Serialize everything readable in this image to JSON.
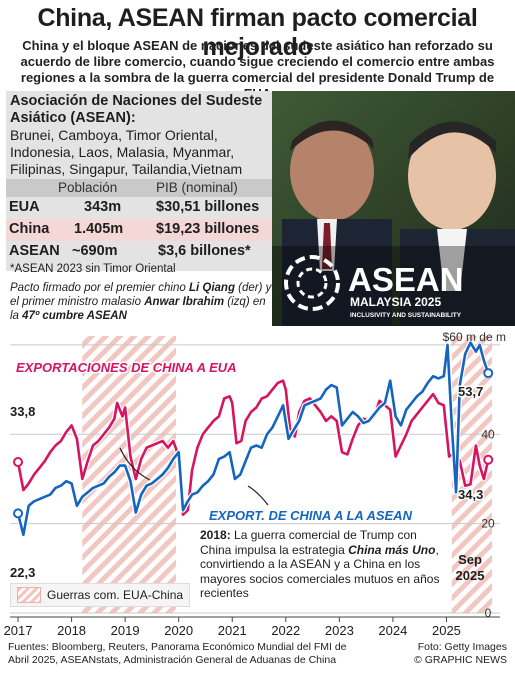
{
  "header": {
    "title": "China, ASEAN firman pacto comercial mejorado",
    "subtitle": "China y el bloque ASEAN de naciones del sudeste asiático han reforzado su acuerdo de libre comercio, cuando sigue creciendo el comercio entre ambas regiones a la sombra de la guerra comercial del presidente Donald Trump de EUA"
  },
  "infobox": {
    "heading": "Asociación de Naciones del Sudeste Asiático (ASEAN):",
    "members": "Brunei, Camboya, Timor Oriental, Indonesia, Laos, Malasia, Myanmar, Filipinas, Singapur, Tailandia,Vietnam",
    "col_population": "Población",
    "col_gdp": "PIB (nominal)",
    "rows": [
      {
        "name": "EUA",
        "population": "343m",
        "gdp": "$30,51 billones"
      },
      {
        "name": "China",
        "population": "1.405m",
        "gdp": "$19,23 billones"
      },
      {
        "name": "ASEAN",
        "population": "~690m",
        "gdp": "$3,6 billones*"
      }
    ],
    "note": "*ASEAN 2023 sin Timor Oriental",
    "caption_pre": "Pacto firmado por el premier chino ",
    "caption_name1": "Li Qiang",
    "caption_mid": " (der) y el primer ministro malasio ",
    "caption_name2": "Anwar Ibrahim",
    "caption_mid2": " (izq) en la ",
    "caption_event": "47º cumbre ASEAN"
  },
  "photo": {
    "logo_text": "ASEAN",
    "logo_sub": "MALAYSIA 2025",
    "logo_tag": "INCLUSIVITY AND SUSTAINABILITY"
  },
  "colors": {
    "china_to_us": "#d6145f",
    "china_to_asean": "#1565c0",
    "hatch": "#f2c6c1",
    "table_alt": "#f4d7d7"
  },
  "chart_data": {
    "type": "line",
    "y_unit_label": "$60 m de m",
    "ylim": [
      0,
      62
    ],
    "y_ticks": [
      "20",
      "40",
      "0"
    ],
    "x_ticks": [
      "2017",
      "2018",
      "2019",
      "2020",
      "2021",
      "2022",
      "2023",
      "2024",
      "2025"
    ],
    "x_range": [
      2016.85,
      2026.0
    ],
    "trade_war_periods": [
      [
        2018.2,
        2019.95
      ],
      [
        2025.1,
        2025.85
      ]
    ],
    "legend_label": "Guerras com. EUA-China",
    "series": [
      {
        "name": "EXPORTACIONES DE CHINA A EUA",
        "values": [
          [
            2017.0,
            33.8
          ],
          [
            2017.1,
            27.5
          ],
          [
            2017.2,
            29
          ],
          [
            2017.3,
            31
          ],
          [
            2017.4,
            32.5
          ],
          [
            2017.5,
            34
          ],
          [
            2017.6,
            36
          ],
          [
            2017.7,
            37.5
          ],
          [
            2017.8,
            38.5
          ],
          [
            2017.9,
            40.5
          ],
          [
            2018.0,
            42
          ],
          [
            2018.1,
            39
          ],
          [
            2018.2,
            30
          ],
          [
            2018.3,
            34
          ],
          [
            2018.4,
            37.5
          ],
          [
            2018.5,
            38.5
          ],
          [
            2018.6,
            40
          ],
          [
            2018.7,
            41.5
          ],
          [
            2018.8,
            43.5
          ],
          [
            2018.85,
            47
          ],
          [
            2018.95,
            44
          ],
          [
            2019.0,
            46
          ],
          [
            2019.1,
            35
          ],
          [
            2019.2,
            30
          ],
          [
            2019.3,
            34.5
          ],
          [
            2019.4,
            37
          ],
          [
            2019.5,
            37.5
          ],
          [
            2019.6,
            38
          ],
          [
            2019.7,
            38.5
          ],
          [
            2019.8,
            37
          ],
          [
            2019.9,
            38.5
          ],
          [
            2020.0,
            35
          ],
          [
            2020.08,
            22
          ],
          [
            2020.17,
            23
          ],
          [
            2020.25,
            32
          ],
          [
            2020.35,
            37
          ],
          [
            2020.45,
            40
          ],
          [
            2020.55,
            41.5
          ],
          [
            2020.65,
            43
          ],
          [
            2020.75,
            44
          ],
          [
            2020.85,
            48
          ],
          [
            2020.95,
            48.5
          ],
          [
            2021.0,
            47
          ],
          [
            2021.08,
            38
          ],
          [
            2021.17,
            38.5
          ],
          [
            2021.25,
            43
          ],
          [
            2021.35,
            45
          ],
          [
            2021.45,
            46
          ],
          [
            2021.55,
            48
          ],
          [
            2021.65,
            48.5
          ],
          [
            2021.75,
            50
          ],
          [
            2021.85,
            51.5
          ],
          [
            2021.95,
            52
          ],
          [
            2022.0,
            50
          ],
          [
            2022.08,
            41
          ],
          [
            2022.17,
            39.5
          ],
          [
            2022.25,
            45
          ],
          [
            2022.35,
            47.5
          ],
          [
            2022.45,
            48
          ],
          [
            2022.55,
            46.5
          ],
          [
            2022.65,
            45
          ],
          [
            2022.75,
            43
          ],
          [
            2022.85,
            44
          ],
          [
            2022.95,
            43
          ],
          [
            2023.05,
            36
          ],
          [
            2023.15,
            35.5
          ],
          [
            2023.25,
            39
          ],
          [
            2023.35,
            42
          ],
          [
            2023.45,
            43.5
          ],
          [
            2023.55,
            43
          ],
          [
            2023.65,
            44
          ],
          [
            2023.75,
            47.5
          ],
          [
            2023.85,
            46.5
          ],
          [
            2023.95,
            45.5
          ],
          [
            2024.05,
            35
          ],
          [
            2024.15,
            37.5
          ],
          [
            2024.25,
            40
          ],
          [
            2024.35,
            43
          ],
          [
            2024.45,
            44.5
          ],
          [
            2024.55,
            46
          ],
          [
            2024.65,
            47.5
          ],
          [
            2024.75,
            49
          ],
          [
            2024.85,
            47
          ],
          [
            2024.95,
            46.5
          ],
          [
            2025.05,
            35
          ],
          [
            2025.15,
            36
          ],
          [
            2025.25,
            34
          ],
          [
            2025.35,
            28.5
          ],
          [
            2025.45,
            28.8
          ],
          [
            2025.55,
            37.5
          ],
          [
            2025.62,
            33
          ],
          [
            2025.7,
            30
          ],
          [
            2025.78,
            34.3
          ]
        ],
        "first_label": "33,8",
        "last_label": "34,3"
      },
      {
        "name": "EXPORT. DE CHINA A LA ASEAN",
        "values": [
          [
            2017.0,
            22.3
          ],
          [
            2017.1,
            17.5
          ],
          [
            2017.2,
            24
          ],
          [
            2017.3,
            25
          ],
          [
            2017.4,
            25.5
          ],
          [
            2017.5,
            26
          ],
          [
            2017.6,
            26.5
          ],
          [
            2017.7,
            28
          ],
          [
            2017.8,
            28.5
          ],
          [
            2017.9,
            29.5
          ],
          [
            2018.0,
            29
          ],
          [
            2018.1,
            24
          ],
          [
            2018.2,
            26
          ],
          [
            2018.3,
            27
          ],
          [
            2018.4,
            28
          ],
          [
            2018.5,
            28.5
          ],
          [
            2018.6,
            29
          ],
          [
            2018.7,
            30.5
          ],
          [
            2018.8,
            31.5
          ],
          [
            2018.9,
            33
          ],
          [
            2019.0,
            33
          ],
          [
            2019.1,
            29.5
          ],
          [
            2019.2,
            22.5
          ],
          [
            2019.3,
            26.5
          ],
          [
            2019.4,
            28.5
          ],
          [
            2019.5,
            29
          ],
          [
            2019.6,
            30
          ],
          [
            2019.7,
            31
          ],
          [
            2019.8,
            32.5
          ],
          [
            2019.9,
            34.5
          ],
          [
            2020.0,
            36
          ],
          [
            2020.08,
            23
          ],
          [
            2020.17,
            25
          ],
          [
            2020.25,
            26.5
          ],
          [
            2020.35,
            27
          ],
          [
            2020.45,
            28.5
          ],
          [
            2020.55,
            29.5
          ],
          [
            2020.65,
            31
          ],
          [
            2020.75,
            34.5
          ],
          [
            2020.85,
            35
          ],
          [
            2020.95,
            36
          ],
          [
            2021.05,
            30
          ],
          [
            2021.15,
            31
          ],
          [
            2021.25,
            34
          ],
          [
            2021.35,
            37
          ],
          [
            2021.45,
            37.5
          ],
          [
            2021.55,
            37
          ],
          [
            2021.65,
            40
          ],
          [
            2021.75,
            41.5
          ],
          [
            2021.85,
            44
          ],
          [
            2021.95,
            46.5
          ],
          [
            2022.05,
            39
          ],
          [
            2022.15,
            41
          ],
          [
            2022.25,
            43
          ],
          [
            2022.35,
            46.5
          ],
          [
            2022.45,
            47
          ],
          [
            2022.55,
            47.5
          ],
          [
            2022.65,
            48
          ],
          [
            2022.75,
            50
          ],
          [
            2022.85,
            51
          ],
          [
            2022.95,
            50.5
          ],
          [
            2023.05,
            42
          ],
          [
            2023.15,
            43.5
          ],
          [
            2023.25,
            45
          ],
          [
            2023.35,
            44
          ],
          [
            2023.45,
            42.5
          ],
          [
            2023.55,
            43
          ],
          [
            2023.65,
            44.5
          ],
          [
            2023.75,
            46
          ],
          [
            2023.85,
            47
          ],
          [
            2023.95,
            52
          ],
          [
            2024.05,
            44
          ],
          [
            2024.15,
            42
          ],
          [
            2024.25,
            45.5
          ],
          [
            2024.35,
            47
          ],
          [
            2024.45,
            48.5
          ],
          [
            2024.55,
            49.5
          ],
          [
            2024.65,
            51.5
          ],
          [
            2024.75,
            53
          ],
          [
            2024.85,
            52.5
          ],
          [
            2024.95,
            53
          ],
          [
            2025.02,
            60
          ],
          [
            2025.1,
            42
          ],
          [
            2025.18,
            27
          ],
          [
            2025.25,
            51
          ],
          [
            2025.35,
            58
          ],
          [
            2025.45,
            60.5
          ],
          [
            2025.55,
            58.5
          ],
          [
            2025.62,
            60
          ],
          [
            2025.7,
            56.5
          ],
          [
            2025.78,
            53.7
          ]
        ],
        "first_label": "22,3",
        "last_label": "53,7"
      }
    ]
  },
  "annotation": {
    "year": "2018:",
    "text_pre": " La guerra comercial de Trump con China impulsa la estrategia ",
    "emph": "China más Uno",
    "text_post": ", convirtiendo a la ASEAN y a China en los mayores socios comerciales mutuos en años recientes"
  },
  "end_label": "Sep 2025",
  "footer": {
    "sources": "Fuentes: Bloomberg, Reuters, Panorama Económico Mundial del FMI de Abril 2025, ASEANstats, Administración General de Aduanas de China",
    "photo_credit": "Foto: Getty Images",
    "brand": "© GRAPHIC NEWS"
  }
}
